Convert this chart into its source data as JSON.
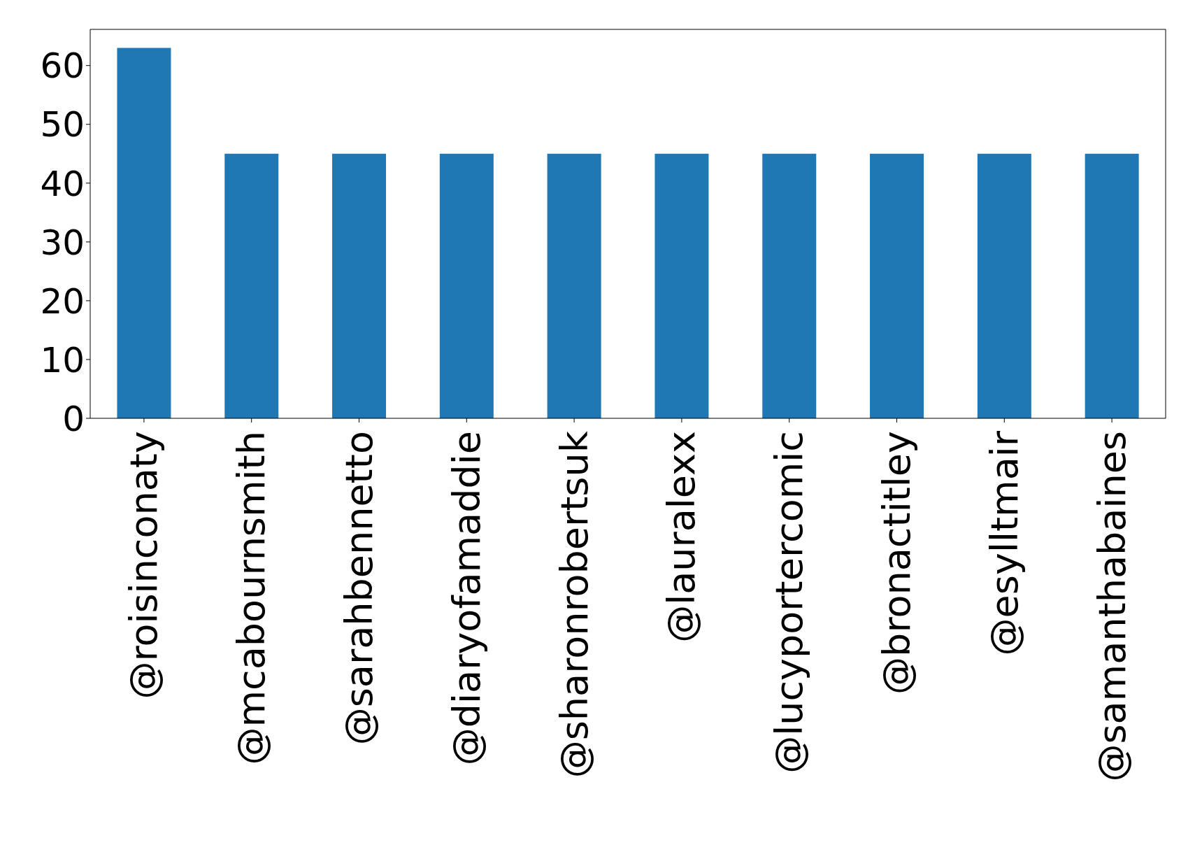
{
  "chart_data": {
    "type": "bar",
    "categories": [
      "@roisinconaty",
      "@mcabournsmith",
      "@sarahbennetto",
      "@diaryofamaddie",
      "@sharonrobertsuk",
      "@lauralexx",
      "@lucyportercomic",
      "@bronactitley",
      "@esylltmair",
      "@samanthabaines"
    ],
    "values": [
      63,
      45,
      45,
      45,
      45,
      45,
      45,
      45,
      45,
      45
    ],
    "color": "#1f77b4",
    "ylim": [
      0,
      66.15
    ],
    "yticks": [
      0,
      10,
      20,
      30,
      40,
      50,
      60
    ],
    "grid": false,
    "legend": false
  }
}
